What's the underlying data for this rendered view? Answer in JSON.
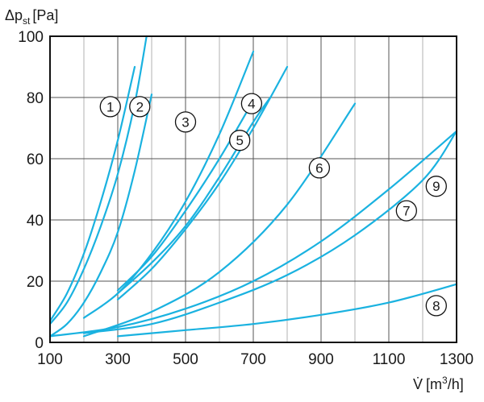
{
  "chart_data": {
    "type": "line",
    "title": "",
    "ylabel": {
      "main": "Δp",
      "sub": "st",
      "unit": "[Pa]"
    },
    "xlabel": {
      "main": "V̇",
      "unit_pre": "[m",
      "unit_sup": "3",
      "unit_post": "/h]"
    },
    "xlim": [
      100,
      1300
    ],
    "ylim": [
      0,
      100
    ],
    "x_ticks": [
      100,
      300,
      500,
      700,
      900,
      1100,
      1300
    ],
    "y_ticks": [
      0,
      20,
      40,
      60,
      80,
      100
    ],
    "grid": true,
    "colors": {
      "series": "#1ab2e0",
      "grid": "#555555",
      "axis": "#111111"
    },
    "series": [
      {
        "label": "1",
        "label_pos": [
          278,
          77
        ],
        "x": [
          100,
          150,
          200,
          250,
          300,
          350,
          385
        ],
        "y": [
          6,
          13,
          24,
          38,
          55,
          78,
          100
        ]
      },
      {
        "label": "1",
        "label_pos": [
          278,
          77
        ],
        "x": [
          100,
          150,
          200,
          250,
          300,
          350
        ],
        "y": [
          7,
          16,
          29,
          46,
          66,
          90
        ]
      },
      {
        "label": "2",
        "label_pos": [
          365,
          77
        ],
        "x": [
          100,
          150,
          200,
          250,
          300,
          350,
          400
        ],
        "y": [
          2,
          6,
          13,
          23,
          36,
          56,
          81
        ]
      },
      {
        "label": "3",
        "label_pos": [
          500,
          72
        ],
        "x": [
          200,
          300,
          400,
          500,
          600,
          700
        ],
        "y": [
          8,
          16,
          29,
          46,
          68,
          95
        ]
      },
      {
        "label": "3",
        "label_pos": [
          500,
          72
        ],
        "x": [
          300,
          400,
          500,
          600,
          700
        ],
        "y": [
          17,
          28,
          43,
          60,
          79
        ]
      },
      {
        "label": "4",
        "label_pos": [
          695,
          78
        ],
        "x": [
          300,
          400,
          500,
          600,
          700,
          800
        ],
        "y": [
          14,
          24,
          37,
          52,
          70,
          90
        ]
      },
      {
        "label": "5",
        "label_pos": [
          660,
          66
        ],
        "x": [
          300,
          400,
          500,
          600,
          700,
          750
        ],
        "y": [
          16,
          26,
          38,
          54,
          72,
          80
        ]
      },
      {
        "label": "6",
        "label_pos": [
          895,
          57
        ],
        "x": [
          200,
          400,
          600,
          800,
          1000
        ],
        "y": [
          2,
          10,
          23,
          45,
          78
        ]
      },
      {
        "label": "9",
        "label_pos": [
          1240,
          51
        ],
        "x": [
          200,
          400,
          600,
          800,
          1000,
          1200,
          1300
        ],
        "y": [
          3,
          6,
          13,
          22,
          35,
          53,
          69
        ]
      },
      {
        "label": "7",
        "label_pos": [
          1152,
          43
        ],
        "x": [
          100,
          300,
          500,
          700,
          900,
          1100,
          1300
        ],
        "y": [
          2,
          5,
          11,
          20,
          33,
          50,
          69
        ]
      },
      {
        "label": "8",
        "label_pos": [
          1240,
          12
        ],
        "x": [
          300,
          500,
          700,
          900,
          1100,
          1300
        ],
        "y": [
          2,
          4,
          6,
          9,
          13,
          19
        ]
      }
    ]
  }
}
